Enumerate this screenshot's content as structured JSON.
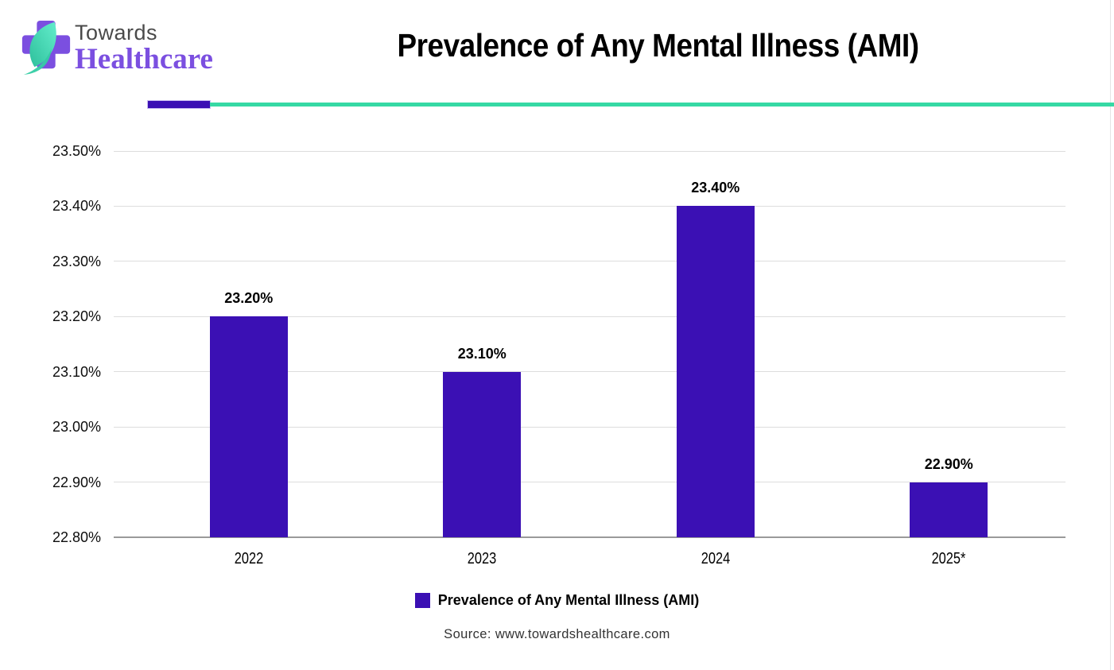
{
  "logo": {
    "towards": "Towards",
    "healthcare": "Healthcare"
  },
  "header": {
    "title": "Prevalence of Any Mental Illness (AMI)"
  },
  "chart_data": {
    "type": "bar",
    "title": "Prevalence of Any Mental Illness (AMI)",
    "categories": [
      "2022",
      "2023",
      "2024",
      "2025*"
    ],
    "values": [
      23.2,
      23.1,
      23.4,
      22.9
    ],
    "value_labels": [
      "23.20%",
      "23.10%",
      "23.40%",
      "22.90%"
    ],
    "xlabel": "",
    "ylabel": "",
    "ylim": [
      22.8,
      23.5
    ],
    "ytick_labels": [
      "23.50%",
      "23.40%",
      "23.30%",
      "23.20%",
      "23.10%",
      "23.00%",
      "22.90%",
      "22.80%"
    ],
    "grid": true,
    "legend": {
      "position": "bottom",
      "label": "Prevalence of Any Mental Illness (AMI)"
    }
  },
  "footer": {
    "source": "Source: www.towardshealthcare.com"
  },
  "colors": {
    "bar_purple": "#3b10b4",
    "divider_purple": "#3b10b4",
    "divider_teal": "#36d9a4",
    "logo_purple": "#7b4fe0",
    "leaf_teal_light": "#63edcb",
    "leaf_teal_dark": "#2ec09c",
    "towards_gray": "#4a4a4a",
    "gridline": "#dddddd",
    "axis_line": "#9a9a9a"
  }
}
